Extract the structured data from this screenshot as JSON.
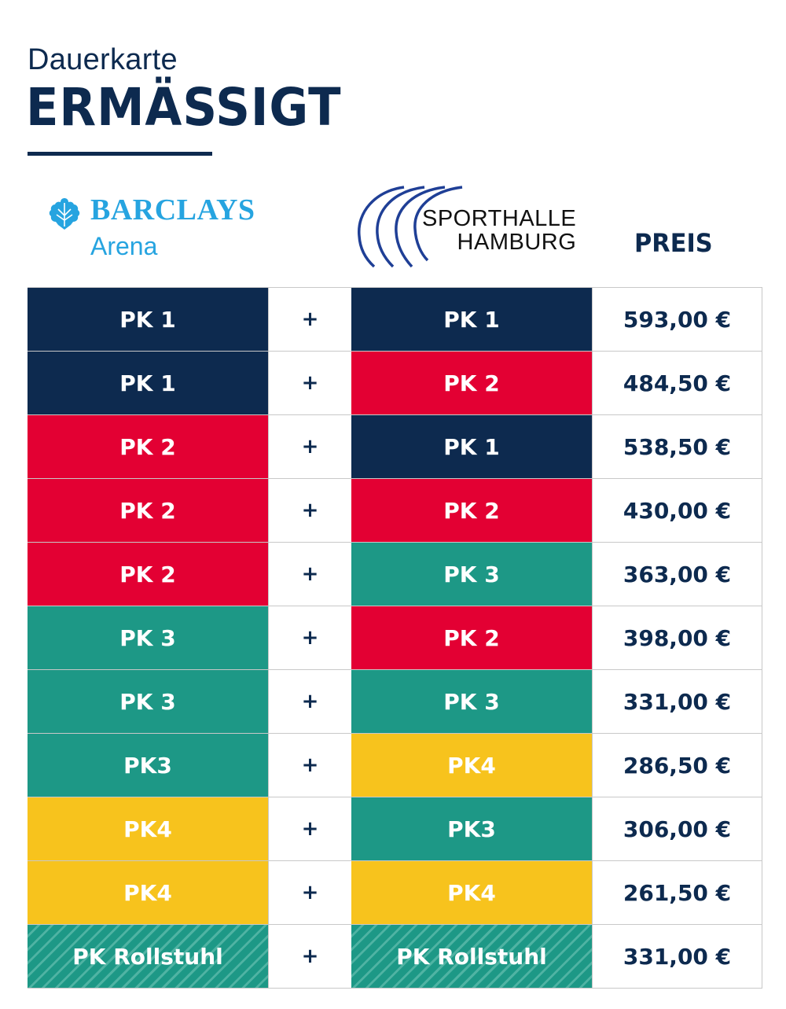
{
  "header": {
    "line1": "Dauerkarte",
    "line2": "ERMÄSSIGT"
  },
  "logos": {
    "barclays_word": "BARCLAYS",
    "barclays_sub": "Arena",
    "sporthalle_line1": "SPORTHALLE",
    "sporthalle_line2": "HAMBURG"
  },
  "columns": {
    "price_header": "PREIS"
  },
  "colors": {
    "navy": "#0d2a4f",
    "red": "#e30033",
    "teal": "#1d9886",
    "yellow": "#f7c31d",
    "barclays_blue": "#26a4e0"
  },
  "rows": [
    {
      "arena": "PK 1",
      "arena_color": "navy",
      "plus": "+",
      "halle": "PK 1",
      "halle_color": "navy",
      "price": "593,00 €"
    },
    {
      "arena": "PK 1",
      "arena_color": "navy",
      "plus": "+",
      "halle": "PK 2",
      "halle_color": "red",
      "price": "484,50 €"
    },
    {
      "arena": "PK 2",
      "arena_color": "red",
      "plus": "+",
      "halle": "PK 1",
      "halle_color": "navy",
      "price": "538,50 €"
    },
    {
      "arena": "PK 2",
      "arena_color": "red",
      "plus": "+",
      "halle": "PK 2",
      "halle_color": "red",
      "price": "430,00 €"
    },
    {
      "arena": "PK 2",
      "arena_color": "red",
      "plus": "+",
      "halle": "PK 3",
      "halle_color": "teal",
      "price": "363,00 €"
    },
    {
      "arena": "PK 3",
      "arena_color": "teal",
      "plus": "+",
      "halle": "PK 2",
      "halle_color": "red",
      "price": "398,00 €"
    },
    {
      "arena": "PK 3",
      "arena_color": "teal",
      "plus": "+",
      "halle": "PK 3",
      "halle_color": "teal",
      "price": "331,00 €"
    },
    {
      "arena": "PK3",
      "arena_color": "teal",
      "plus": "+",
      "halle": "PK4",
      "halle_color": "yellow",
      "price": "286,50 €"
    },
    {
      "arena": "PK4",
      "arena_color": "yellow",
      "plus": "+",
      "halle": "PK3",
      "halle_color": "teal",
      "price": "306,00 €"
    },
    {
      "arena": "PK4",
      "arena_color": "yellow",
      "plus": "+",
      "halle": "PK4",
      "halle_color": "yellow",
      "price": "261,50 €"
    },
    {
      "arena": "PK Rollstuhl",
      "arena_color": "stripe",
      "plus": "+",
      "halle": "PK Rollstuhl",
      "halle_color": "stripe",
      "price": "331,00 €"
    }
  ]
}
